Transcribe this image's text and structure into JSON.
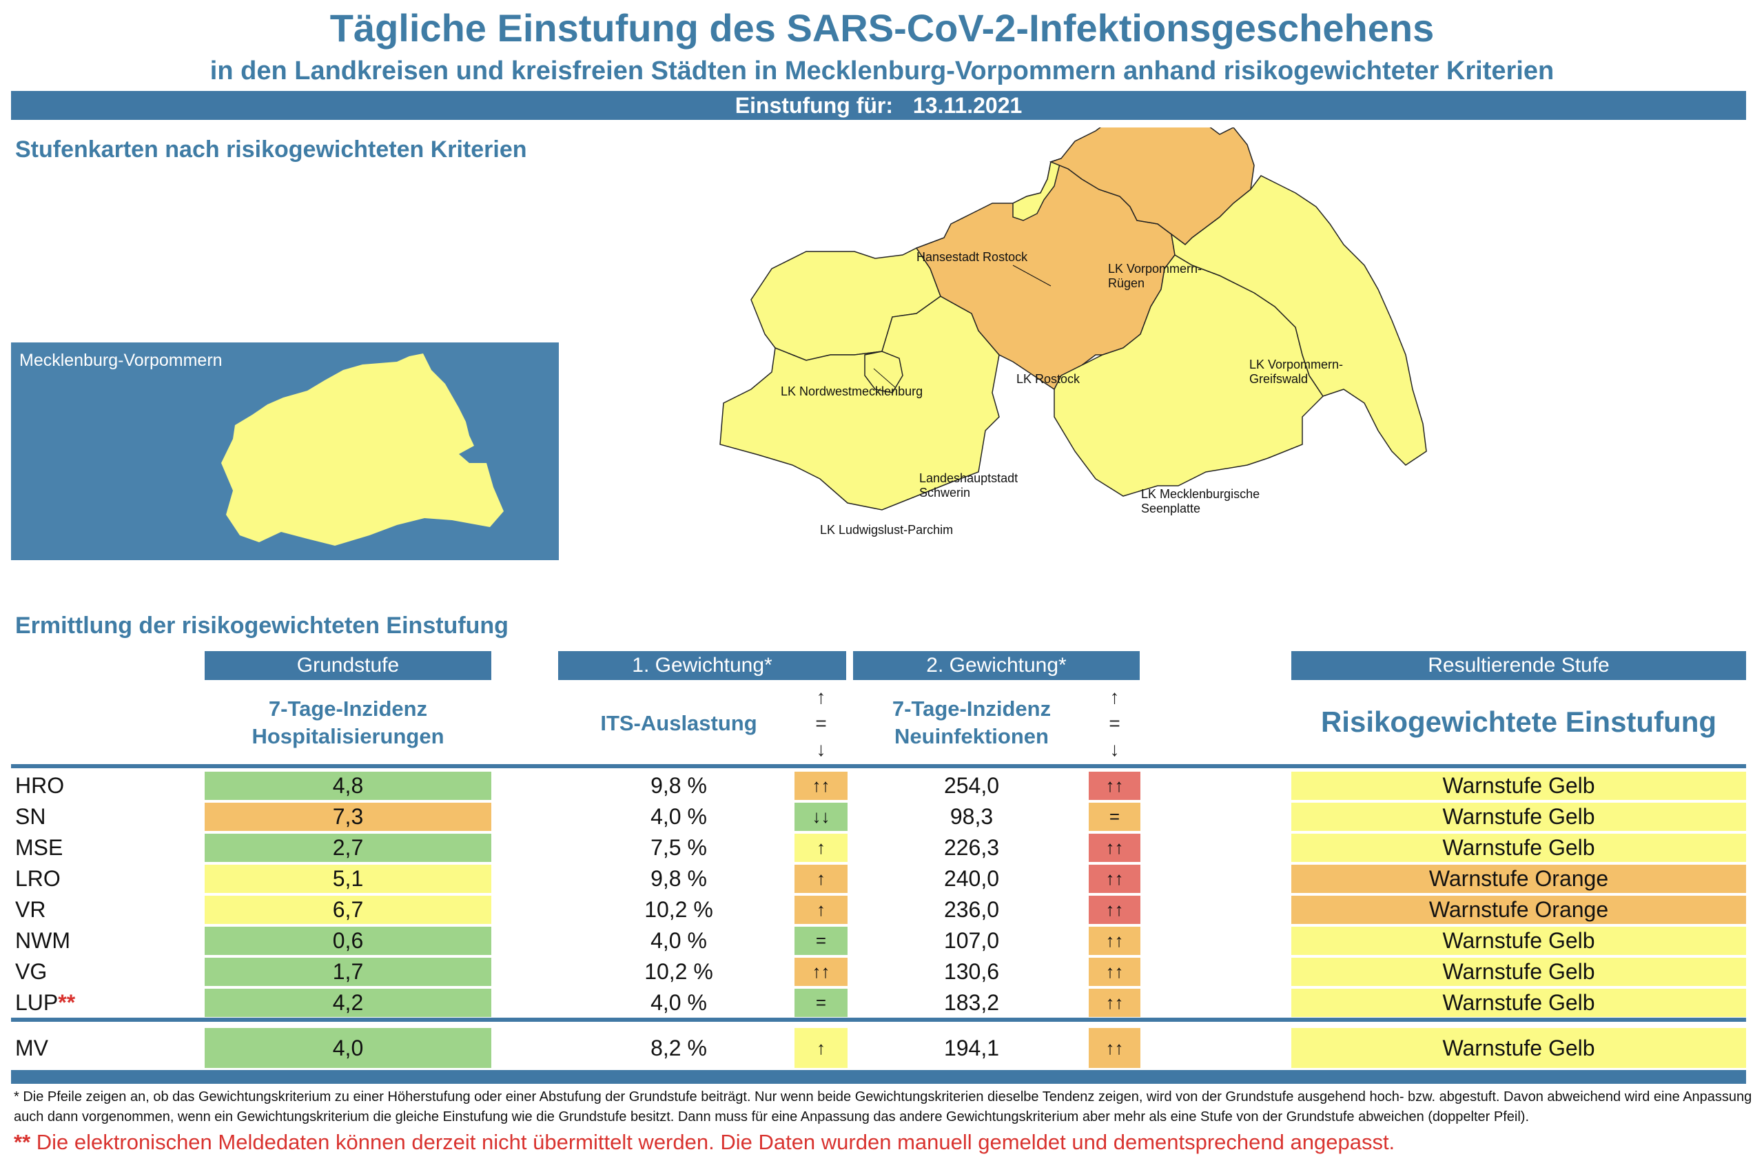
{
  "header": {
    "title": "Tägliche Einstufung des SARS-CoV-2-Infektionsgeschehens",
    "subtitle": "in den Landkreisen und kreisfreien Städten in Mecklenburg-Vorpommern anhand risikogewichteter Kriterien",
    "date_label": "Einstufung für:",
    "date_value": "13.11.2021"
  },
  "maps_section": {
    "title": "Stufenkarten nach risikogewichteten Kriterien",
    "overview_label": "Mecklenburg-Vorpommern",
    "region_labels": {
      "rostock_city": "Hansestadt Rostock",
      "vr_line1": "LK Vorpommern-",
      "vr_line2": "Rügen",
      "nwm": "LK Nordwestmecklenburg",
      "lro": "LK Rostock",
      "vg_line1": "LK Vorpommern-",
      "vg_line2": "Greifswald",
      "sn_line1": "Landeshauptstadt",
      "sn_line2": "Schwerin",
      "lup": "LK Ludwigslust-Parchim",
      "mse_line1": "LK Mecklenburgische",
      "mse_line2": "Seenplatte"
    },
    "colors": {
      "yellow": "#fbfa86",
      "orange": "#f4c06a",
      "blue": "#4a82ac"
    }
  },
  "table_section": {
    "title": "Ermittlung der risikogewichteten Einstufung",
    "col_grundstufe": "Grundstufe",
    "col_gew1": "1. Gewichtung*",
    "col_gew2": "2. Gewichtung*",
    "col_result": "Resultierende Stufe",
    "sub_grund_1": "7-Tage-Inzidenz",
    "sub_grund_2": "Hospitalisierungen",
    "sub_its": "ITS-Auslastung",
    "sub_inc_1": "7-Tage-Inzidenz",
    "sub_inc_2": "Neuinfektionen",
    "sub_result": "Risikogewichtete Einstufung",
    "arrow_up": "↑",
    "arrow_eq": "=",
    "arrow_down": "↓",
    "rows": [
      {
        "name": "HRO",
        "marker": "",
        "grund": "4,8",
        "grund_color": "#9ed48a",
        "its": "9,8 %",
        "a1": "↑↑",
        "a1_color": "#f4c06a",
        "inc": "254,0",
        "a2": "↑↑",
        "a2_color": "#e6756d",
        "result": "Warnstufe Gelb",
        "result_color": "#fbfa86"
      },
      {
        "name": "SN",
        "marker": "",
        "grund": "7,3",
        "grund_color": "#f4c06a",
        "its": "4,0 %",
        "a1": "↓↓",
        "a1_color": "#9ed48a",
        "inc": "98,3",
        "a2": "=",
        "a2_color": "#f4c06a",
        "result": "Warnstufe Gelb",
        "result_color": "#fbfa86"
      },
      {
        "name": "MSE",
        "marker": "",
        "grund": "2,7",
        "grund_color": "#9ed48a",
        "its": "7,5 %",
        "a1": "↑",
        "a1_color": "#fbfa86",
        "inc": "226,3",
        "a2": "↑↑",
        "a2_color": "#e6756d",
        "result": "Warnstufe Gelb",
        "result_color": "#fbfa86"
      },
      {
        "name": "LRO",
        "marker": "",
        "grund": "5,1",
        "grund_color": "#fbfa86",
        "its": "9,8 %",
        "a1": "↑",
        "a1_color": "#f4c06a",
        "inc": "240,0",
        "a2": "↑↑",
        "a2_color": "#e6756d",
        "result": "Warnstufe Orange",
        "result_color": "#f4c06a"
      },
      {
        "name": "VR",
        "marker": "",
        "grund": "6,7",
        "grund_color": "#fbfa86",
        "its": "10,2 %",
        "a1": "↑",
        "a1_color": "#f4c06a",
        "inc": "236,0",
        "a2": "↑↑",
        "a2_color": "#e6756d",
        "result": "Warnstufe Orange",
        "result_color": "#f4c06a"
      },
      {
        "name": "NWM",
        "marker": "",
        "grund": "0,6",
        "grund_color": "#9ed48a",
        "its": "4,0 %",
        "a1": "=",
        "a1_color": "#9ed48a",
        "inc": "107,0",
        "a2": "↑↑",
        "a2_color": "#f4c06a",
        "result": "Warnstufe Gelb",
        "result_color": "#fbfa86"
      },
      {
        "name": "VG",
        "marker": "",
        "grund": "1,7",
        "grund_color": "#9ed48a",
        "its": "10,2 %",
        "a1": "↑↑",
        "a1_color": "#f4c06a",
        "inc": "130,6",
        "a2": "↑↑",
        "a2_color": "#f4c06a",
        "result": "Warnstufe Gelb",
        "result_color": "#fbfa86"
      },
      {
        "name": "LUP",
        "marker": "**",
        "grund": "4,2",
        "grund_color": "#9ed48a",
        "its": "4,0 %",
        "a1": "=",
        "a1_color": "#9ed48a",
        "inc": "183,2",
        "a2": "↑↑",
        "a2_color": "#f4c06a",
        "result": "Warnstufe Gelb",
        "result_color": "#fbfa86"
      }
    ],
    "total": {
      "name": "MV",
      "grund": "4,0",
      "grund_color": "#9ed48a",
      "its": "8,2 %",
      "a1": "↑",
      "a1_color": "#fbfa86",
      "inc": "194,1",
      "a2": "↑↑",
      "a2_color": "#f4c06a",
      "result": "Warnstufe Gelb",
      "result_color": "#fbfa86"
    }
  },
  "footnotes": {
    "arrows_note": "* Die Pfeile zeigen an, ob das Gewichtungskriterium zu einer Höherstufung oder einer Abstufung der Grundstufe beiträgt. Nur wenn beide Gewichtungskriterien dieselbe Tendenz zeigen, wird von der Grundstufe ausgehend hoch- bzw. abgestuft.  Davon abweichend wird eine Anpassung auch dann vorgenommen, wenn ein Gewichtungskriterium die gleiche Einstufung wie die Grundstufe besitzt. Dann muss für eine Anpassung das andere Gewichtungskriterium aber mehr als eine Stufe von der Grundstufe abweichen (doppelter Pfeil).",
    "warning_marker": "**",
    "warning": "Die elektronischen Meldedaten können derzeit nicht übermittelt werden. Die Daten wurden manuell gemeldet und dementsprechend angepasst."
  }
}
